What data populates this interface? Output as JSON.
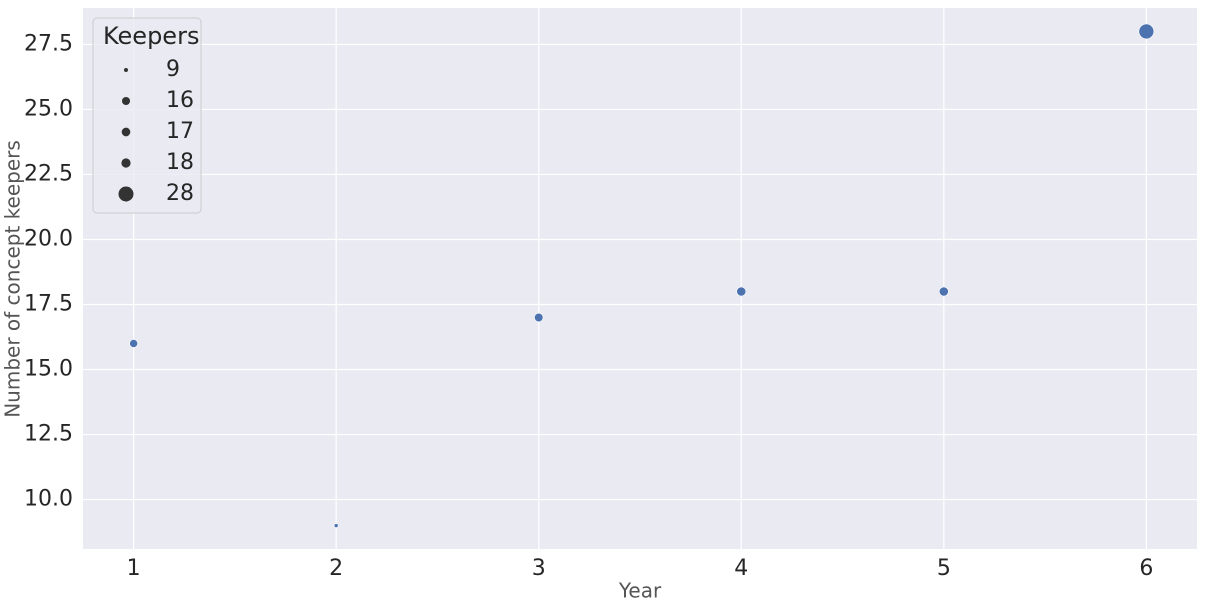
{
  "chart_data": {
    "type": "scatter",
    "x": [
      1,
      2,
      3,
      4,
      5,
      6
    ],
    "series": [
      {
        "color": "#4c72b0",
        "values": [
          16,
          9,
          17,
          18,
          18,
          28
        ],
        "sizes": [
          16,
          9,
          17,
          18,
          18,
          28
        ]
      }
    ],
    "xlabel": "Year",
    "ylabel": "Number of concept keepers",
    "xlim": [
      0.75,
      6.25
    ],
    "xticks": [
      1,
      2,
      3,
      4,
      5,
      6
    ],
    "ylim": [
      8.1,
      28.9
    ],
    "yticks": [
      {
        "value": 10,
        "label": "10.0"
      },
      {
        "value": 12.5,
        "label": "12.5"
      },
      {
        "value": 15,
        "label": "15.0"
      },
      {
        "value": 17.5,
        "label": "17.5"
      },
      {
        "value": 20,
        "label": "20.0"
      },
      {
        "value": 22.5,
        "label": "22.5"
      },
      {
        "value": 25,
        "label": "25.0"
      },
      {
        "value": 27.5,
        "label": "27.5"
      }
    ],
    "grid": true,
    "legend": {
      "title": "Keepers",
      "sizes": [
        9,
        16,
        17,
        18,
        28
      ],
      "position": "upper left"
    }
  }
}
